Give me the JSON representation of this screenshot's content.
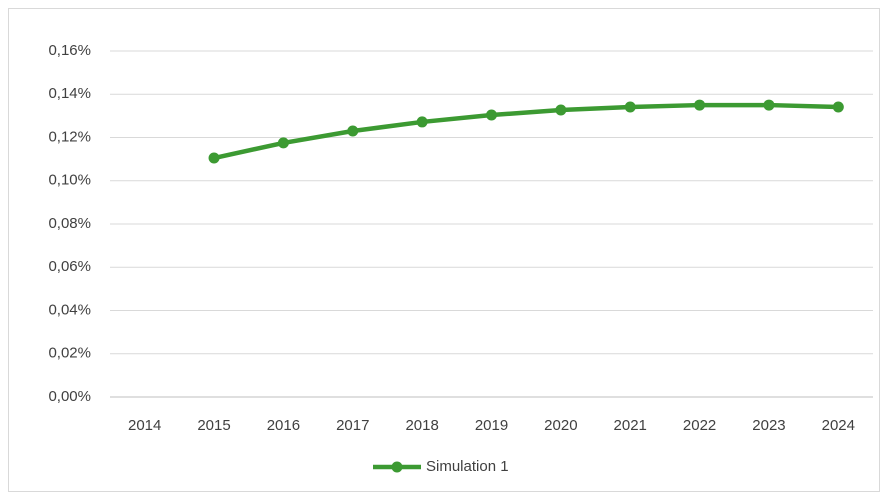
{
  "chart_data": {
    "type": "line",
    "categories": [
      "2014",
      "2015",
      "2016",
      "2017",
      "2018",
      "2019",
      "2020",
      "2021",
      "2022",
      "2023",
      "2024"
    ],
    "series": [
      {
        "name": "Simulation 1",
        "color": "#3c9a32",
        "values": [
          null,
          0.1105,
          0.1175,
          0.123,
          0.1272,
          0.1304,
          0.1327,
          0.1341,
          0.135,
          0.135,
          0.1341
        ]
      }
    ],
    "ylim": [
      0,
      0.16
    ],
    "yticks": [
      {
        "value": 0,
        "label": "0,00%"
      },
      {
        "value": 0.02,
        "label": "0,02%"
      },
      {
        "value": 0.04,
        "label": "0,04%"
      },
      {
        "value": 0.06,
        "label": "0,06%"
      },
      {
        "value": 0.08,
        "label": "0,08%"
      },
      {
        "value": 0.1,
        "label": "0,10%"
      },
      {
        "value": 0.12,
        "label": "0,12%"
      },
      {
        "value": 0.14,
        "label": "0,14%"
      },
      {
        "value": 0.16,
        "label": "0,16%"
      }
    ],
    "grid": true,
    "legend": "bottom"
  }
}
